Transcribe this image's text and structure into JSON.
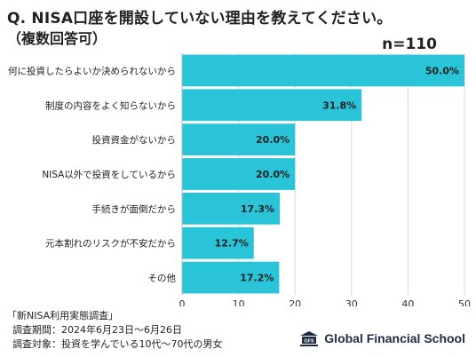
{
  "title": "Q. NISA口座を開設していない理由を教えてください。",
  "subtitle": "（複数回答可）",
  "sample_size": "n=110",
  "chart_data": {
    "type": "bar",
    "orientation": "horizontal",
    "categories": [
      "何に投資したらよいか決められないから",
      "制度の内容をよく知らないから",
      "投資資金がないから",
      "NISA以外で投資をしているから",
      "手続きが面倒だから",
      "元本割れのリスクが不安だから",
      "その他"
    ],
    "values": [
      50.0,
      31.8,
      20.0,
      20.0,
      17.3,
      12.7,
      17.2
    ],
    "value_labels": [
      "50.0%",
      "31.8%",
      "20.0%",
      "20.0%",
      "17.3%",
      "12.7%",
      "17.2%"
    ],
    "xlim": [
      0,
      50
    ],
    "xticks": [
      "0",
      "10",
      "20",
      "30",
      "40",
      "50"
    ],
    "grid": true,
    "bar_color": "#29c4d8"
  },
  "footer": {
    "line1": "「新NISA利用実態調査」",
    "line2": "調査期間：2024年6月23日〜6月26日",
    "line3": "調査対象：投資を学んでいる10代〜70代の男女"
  },
  "logo": {
    "text": "Global Financial School",
    "mark": "GFS",
    "icon": "building-icon"
  }
}
